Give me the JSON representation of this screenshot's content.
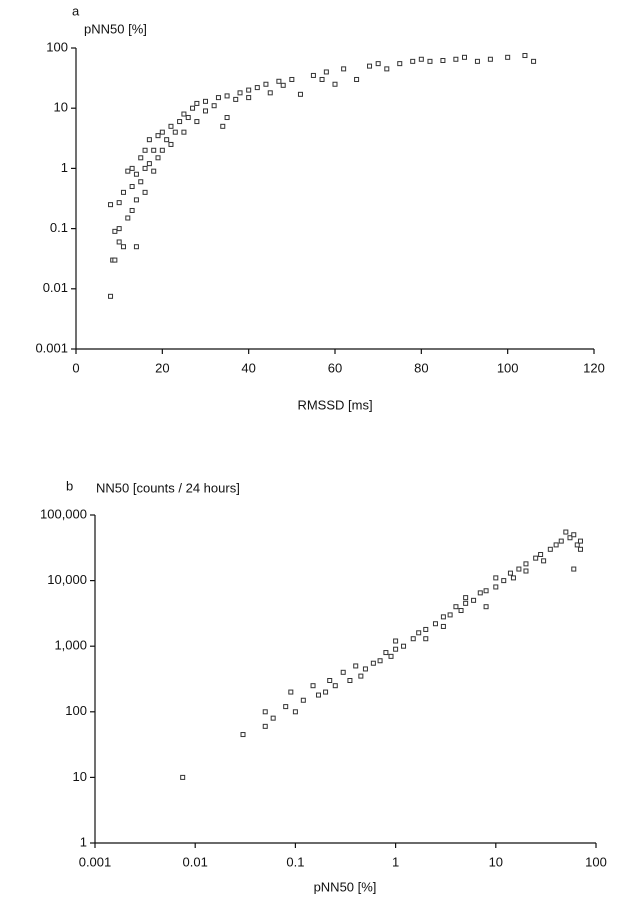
{
  "chart_data": [
    {
      "type": "scatter",
      "panel_label": "a",
      "y_label": "pNN50 [%]",
      "x_label": "RMSSD [ms]",
      "xlog": false,
      "ylog": true,
      "color": "#333333",
      "xlim": [
        0,
        120
      ],
      "ylim": [
        0.001,
        100
      ],
      "xticks": [
        0,
        20,
        40,
        60,
        80,
        100,
        120
      ],
      "yticks": [
        0.001,
        0.01,
        0.1,
        1,
        10,
        100
      ],
      "x": [
        8,
        8.5,
        9,
        8,
        9,
        10,
        10,
        11,
        10,
        11,
        12,
        12,
        13,
        13,
        13,
        14,
        14,
        14,
        15,
        15,
        16,
        16,
        16,
        17,
        17,
        18,
        18,
        19,
        19,
        20,
        20,
        21,
        22,
        22,
        23,
        24,
        25,
        25,
        26,
        27,
        28,
        28,
        30,
        30,
        32,
        33,
        34,
        35,
        35,
        37,
        38,
        40,
        40,
        42,
        44,
        45,
        47,
        48,
        50,
        52,
        55,
        57,
        58,
        60,
        62,
        65,
        68,
        70,
        72,
        75,
        78,
        80,
        82,
        85,
        88,
        90,
        93,
        96,
        100,
        104,
        106
      ],
      "values": [
        0.0075,
        0.03,
        0.09,
        0.25,
        0.03,
        0.06,
        0.1,
        0.05,
        0.27,
        0.4,
        0.15,
        0.9,
        0.2,
        0.5,
        1,
        0.3,
        0.8,
        0.05,
        0.6,
        1.5,
        0.4,
        1,
        2,
        1.2,
        3,
        0.9,
        2,
        1.5,
        3.5,
        2,
        4,
        3,
        2.5,
        5,
        4,
        6,
        4,
        8,
        7,
        10,
        6,
        12,
        9,
        13,
        11,
        15,
        5,
        7,
        16,
        14,
        18,
        20,
        15,
        22,
        25,
        18,
        28,
        24,
        30,
        17,
        35,
        30,
        40,
        25,
        45,
        30,
        50,
        55,
        45,
        55,
        60,
        65,
        60,
        62,
        65,
        70,
        60,
        65,
        70,
        75,
        60
      ]
    },
    {
      "type": "scatter",
      "panel_label": "b",
      "y_label": "NN50 [counts / 24 hours]",
      "x_label": "pNN50 [%]",
      "xlog": true,
      "ylog": true,
      "color": "#333333",
      "xlim": [
        0.001,
        100
      ],
      "ylim": [
        1,
        100000
      ],
      "xticks": [
        0.001,
        0.01,
        0.1,
        1,
        10,
        100
      ],
      "yticks": [
        1,
        10,
        100,
        {
          "value": 1000,
          "label": "1,000"
        },
        {
          "value": 10000,
          "label": "10,000"
        },
        {
          "value": 100000,
          "label": "100,000"
        }
      ],
      "x": [
        0.0075,
        0.03,
        0.05,
        0.05,
        0.06,
        0.08,
        0.09,
        0.1,
        0.12,
        0.15,
        0.17,
        0.2,
        0.22,
        0.25,
        0.3,
        0.35,
        0.4,
        0.45,
        0.5,
        0.6,
        0.7,
        0.8,
        0.9,
        1,
        1,
        1.2,
        1.5,
        1.7,
        2,
        2,
        2.5,
        3,
        3,
        3.5,
        4,
        4.5,
        5,
        5,
        6,
        7,
        8,
        8,
        10,
        10,
        12,
        14,
        15,
        17,
        20,
        20,
        25,
        28,
        30,
        35,
        40,
        45,
        50,
        55,
        60,
        60,
        65,
        70,
        70
      ],
      "values": [
        10,
        45,
        100,
        60,
        80,
        120,
        200,
        100,
        150,
        250,
        180,
        200,
        300,
        250,
        400,
        300,
        500,
        350,
        450,
        550,
        600,
        800,
        700,
        900,
        1200,
        1000,
        1300,
        1600,
        1800,
        1300,
        2200,
        2800,
        2000,
        3000,
        4000,
        3500,
        4500,
        5500,
        5000,
        6500,
        7000,
        4000,
        8000,
        11000,
        10000,
        13000,
        11000,
        15000,
        18000,
        14000,
        22000,
        25000,
        20000,
        30000,
        35000,
        40000,
        55000,
        45000,
        50000,
        15000,
        35000,
        40000,
        30000
      ]
    }
  ]
}
